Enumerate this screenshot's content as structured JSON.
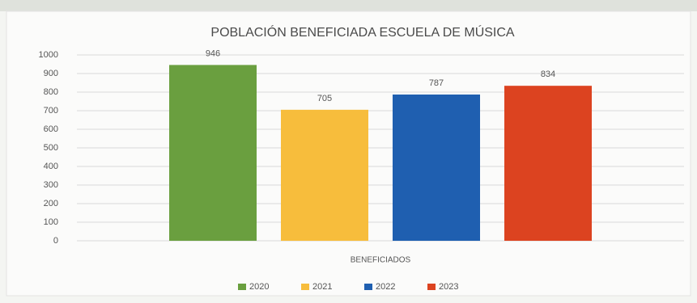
{
  "chart_data": {
    "type": "bar",
    "title": "POBLACIÓN BENEFICIADA ESCUELA DE MÚSICA",
    "categories": [
      "BENEFICIADOS"
    ],
    "series": [
      {
        "name": "2020",
        "color": "#6a9f3f",
        "values": [
          946
        ]
      },
      {
        "name": "2021",
        "color": "#f7bd3c",
        "values": [
          705
        ]
      },
      {
        "name": "2022",
        "color": "#1f5fb0",
        "values": [
          787
        ]
      },
      {
        "name": "2023",
        "color": "#dc4320",
        "values": [
          834
        ]
      }
    ],
    "ylim": [
      0,
      1000
    ],
    "yticks": [
      0,
      100,
      200,
      300,
      400,
      500,
      600,
      700,
      800,
      900,
      1000
    ],
    "grid": true,
    "legend": "bottom"
  }
}
